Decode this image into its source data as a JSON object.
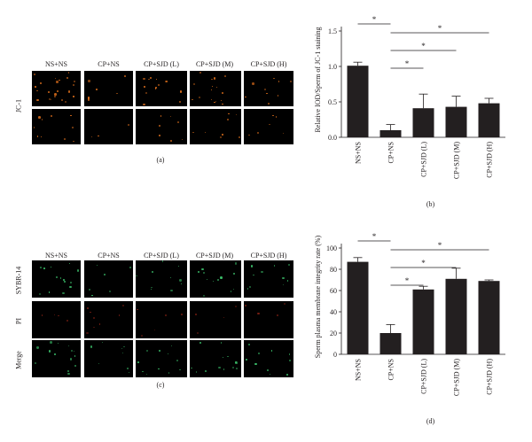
{
  "panel_a": {
    "columns": [
      "NS+NS",
      "CP+NS",
      "CP+SJD (L)",
      "CP+SJD (M)",
      "CP+SJD (H)"
    ],
    "row_label": "JC-1",
    "caption": "(a)"
  },
  "panel_c": {
    "columns": [
      "NS+NS",
      "CP+NS",
      "CP+SJD (L)",
      "CP+SJD (M)",
      "CP+SJD (H)"
    ],
    "rows": [
      "SYBR-14",
      "PI",
      "Merge"
    ],
    "caption": "(c)"
  },
  "colors": {
    "bar": "#231f20",
    "axis": "#231f20",
    "stain_orange": "#e0701c",
    "stain_green": "#3bbf6a",
    "stain_red": "#7a1e12"
  },
  "chart_data": [
    {
      "id": "b",
      "type": "bar",
      "caption": "(b)",
      "ylabel": "Relative IOD/Sperm of JC-1 staining",
      "categories": [
        "NS+NS",
        "CP+NS",
        "CP+SJD (L)",
        "CP+SJD (M)",
        "CP+SJD (H)"
      ],
      "values": [
        1.01,
        0.1,
        0.41,
        0.43,
        0.48
      ],
      "errors": [
        0.05,
        0.08,
        0.2,
        0.15,
        0.07
      ],
      "ylim": [
        0,
        1.5
      ],
      "yticks": [
        "0.0",
        "0.5",
        "1.0",
        "1.5"
      ],
      "ytick_values": [
        0,
        0.5,
        1.0,
        1.5
      ],
      "significance": [
        {
          "from": 0,
          "to": 1,
          "label": "*"
        },
        {
          "from": 1,
          "to": 4,
          "label": "*"
        },
        {
          "from": 1,
          "to": 3,
          "label": "*"
        },
        {
          "from": 1,
          "to": 2,
          "label": "*"
        }
      ]
    },
    {
      "id": "d",
      "type": "bar",
      "caption": "(d)",
      "ylabel": "Sperm plasma membrane integrity rate (%)",
      "categories": [
        "NS+NS",
        "CP+NS",
        "CP+SJD (L)",
        "CP+SJD (M)",
        "CP+SJD (H)"
      ],
      "values": [
        87,
        20,
        61,
        71,
        69
      ],
      "errors": [
        4,
        8,
        3,
        10,
        1
      ],
      "ylim": [
        0,
        100
      ],
      "yticks": [
        "0",
        "20",
        "40",
        "60",
        "80",
        "100"
      ],
      "ytick_values": [
        0,
        20,
        40,
        60,
        80,
        100
      ],
      "significance": [
        {
          "from": 0,
          "to": 1,
          "label": "*"
        },
        {
          "from": 1,
          "to": 4,
          "label": "*"
        },
        {
          "from": 1,
          "to": 3,
          "label": "*"
        },
        {
          "from": 1,
          "to": 2,
          "label": "*"
        }
      ]
    }
  ]
}
